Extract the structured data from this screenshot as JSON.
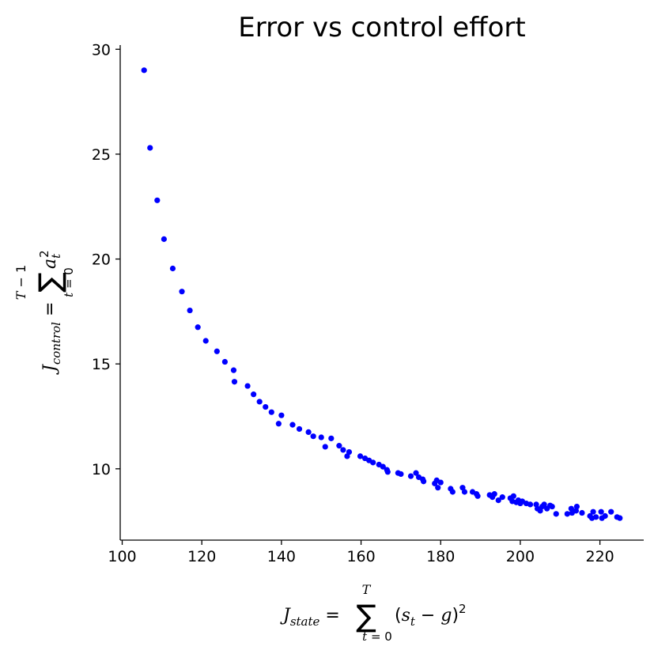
{
  "chart_data": {
    "type": "scatter",
    "title": "Error vs control effort",
    "xlabel": "J_state = Σ_{t=0}^{T} (s_t − g)^2",
    "ylabel": "J_control = Σ_{t=0}^{T−1} a_t^2",
    "xlim": [
      99.5,
      231
    ],
    "ylim": [
      6.6,
      30.2
    ],
    "x_ticks": [
      "100",
      "120",
      "140",
      "160",
      "180",
      "200",
      "220"
    ],
    "y_ticks": [
      "10",
      "15",
      "20",
      "25",
      "30"
    ],
    "grid": false,
    "legend": "none",
    "marker_color": "#0000ff",
    "series": [
      {
        "points": [
          [
            105.5,
            29.0
          ],
          [
            107.0,
            25.3
          ],
          [
            108.8,
            22.8
          ],
          [
            110.5,
            20.95
          ],
          [
            112.7,
            19.55
          ],
          [
            115.0,
            18.45
          ],
          [
            117.0,
            17.55
          ],
          [
            119.0,
            16.75
          ],
          [
            121.0,
            16.1
          ],
          [
            123.8,
            15.6
          ],
          [
            125.8,
            15.1
          ],
          [
            128.0,
            14.7
          ],
          [
            128.2,
            14.15
          ],
          [
            131.5,
            13.95
          ],
          [
            133.0,
            13.55
          ],
          [
            134.5,
            13.2
          ],
          [
            136.0,
            12.95
          ],
          [
            137.5,
            12.7
          ],
          [
            139.3,
            12.15
          ],
          [
            140.0,
            12.55
          ],
          [
            142.8,
            12.1
          ],
          [
            144.5,
            11.9
          ],
          [
            146.8,
            11.75
          ],
          [
            148.0,
            11.55
          ],
          [
            150.0,
            11.5
          ],
          [
            151.0,
            11.05
          ],
          [
            152.5,
            11.45
          ],
          [
            154.5,
            11.1
          ],
          [
            155.5,
            10.9
          ],
          [
            156.5,
            10.6
          ],
          [
            157.0,
            10.8
          ],
          [
            159.8,
            10.6
          ],
          [
            161.0,
            10.5
          ],
          [
            162.0,
            10.4
          ],
          [
            163.0,
            10.3
          ],
          [
            164.5,
            10.2
          ],
          [
            165.5,
            10.1
          ],
          [
            166.5,
            9.95
          ],
          [
            166.7,
            9.85
          ],
          [
            169.3,
            9.8
          ],
          [
            170.0,
            9.75
          ],
          [
            172.5,
            9.65
          ],
          [
            173.8,
            9.8
          ],
          [
            174.5,
            9.6
          ],
          [
            175.5,
            9.5
          ],
          [
            175.7,
            9.4
          ],
          [
            178.5,
            9.3
          ],
          [
            179.0,
            9.45
          ],
          [
            179.3,
            9.1
          ],
          [
            180.0,
            9.35
          ],
          [
            182.5,
            9.05
          ],
          [
            183.0,
            8.9
          ],
          [
            185.5,
            9.1
          ],
          [
            186.0,
            8.9
          ],
          [
            188.0,
            8.9
          ],
          [
            189.0,
            8.8
          ],
          [
            189.3,
            8.7
          ],
          [
            192.3,
            8.75
          ],
          [
            193.0,
            8.65
          ],
          [
            193.5,
            8.8
          ],
          [
            194.5,
            8.5
          ],
          [
            195.5,
            8.65
          ],
          [
            197.5,
            8.6
          ],
          [
            198.0,
            8.45
          ],
          [
            198.3,
            8.7
          ],
          [
            199.0,
            8.4
          ],
          [
            199.5,
            8.5
          ],
          [
            200.0,
            8.35
          ],
          [
            200.5,
            8.45
          ],
          [
            201.5,
            8.35
          ],
          [
            202.5,
            8.3
          ],
          [
            204.0,
            8.3
          ],
          [
            204.3,
            8.1
          ],
          [
            205.0,
            8.0
          ],
          [
            205.5,
            8.2
          ],
          [
            206.0,
            8.3
          ],
          [
            206.7,
            8.1
          ],
          [
            207.5,
            8.25
          ],
          [
            208.0,
            8.2
          ],
          [
            209.0,
            7.85
          ],
          [
            211.8,
            7.85
          ],
          [
            212.8,
            8.1
          ],
          [
            213.0,
            7.9
          ],
          [
            214.0,
            8.0
          ],
          [
            214.2,
            8.2
          ],
          [
            215.5,
            7.9
          ],
          [
            217.5,
            7.75
          ],
          [
            218.0,
            7.65
          ],
          [
            218.3,
            7.95
          ],
          [
            219.0,
            7.7
          ],
          [
            220.3,
            7.95
          ],
          [
            220.5,
            7.65
          ],
          [
            221.3,
            7.75
          ],
          [
            222.8,
            7.95
          ],
          [
            224.3,
            7.7
          ],
          [
            225.0,
            7.65
          ]
        ]
      }
    ]
  }
}
